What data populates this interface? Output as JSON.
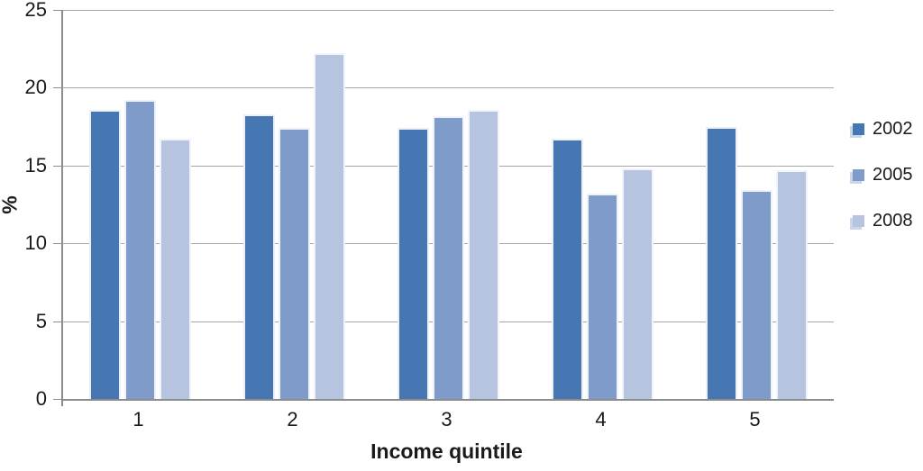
{
  "chart_data": {
    "type": "bar",
    "title": "",
    "xlabel": "Income quintile",
    "ylabel": "%",
    "categories": [
      "1",
      "2",
      "3",
      "4",
      "5"
    ],
    "series": [
      {
        "name": "2002",
        "color": "#4777B2",
        "values": [
          18.6,
          18.3,
          17.4,
          16.7,
          17.5
        ]
      },
      {
        "name": "2005",
        "color": "#7E9BCA",
        "values": [
          19.2,
          17.4,
          18.2,
          13.2,
          13.4
        ]
      },
      {
        "name": "2008",
        "color": "#B6C4E0",
        "values": [
          16.7,
          22.2,
          18.6,
          14.8,
          14.7
        ]
      }
    ],
    "ylim": [
      0,
      25
    ],
    "yticks": [
      0,
      5,
      10,
      15,
      20,
      25
    ],
    "grid": true,
    "legend_position": "right"
  },
  "styles": {
    "gridline_color": "#A6A6A6",
    "axis_color": "#8C8C8C",
    "text_color": "#1A1A1A",
    "legend_marker_shadow": "#CAD7EB"
  }
}
